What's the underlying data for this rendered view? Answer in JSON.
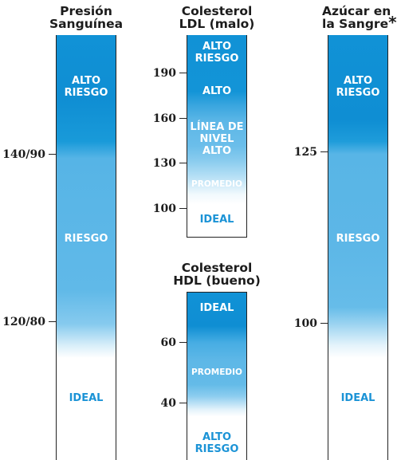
{
  "panels": {
    "blood_pressure": {
      "title": [
        "Presión",
        "Sanguínea"
      ],
      "bands": {
        "high_risk": [
          "ALTO",
          "RIESGO"
        ],
        "risk": "RIESGO",
        "ideal": "IDEAL"
      },
      "ticks": [
        "140/90",
        "120/80"
      ]
    },
    "ldl": {
      "title": [
        "Colesterol",
        "LDL (malo)"
      ],
      "bands": {
        "high_risk": [
          "ALTO",
          "RIESGO"
        ],
        "high": "ALTO",
        "borderline": [
          "LÍNEA DE",
          "NIVEL",
          "ALTO"
        ],
        "average": "PROMEDIO",
        "ideal": "IDEAL"
      },
      "ticks": [
        "190",
        "160",
        "130",
        "100"
      ]
    },
    "hdl": {
      "title": [
        "Colesterol",
        "HDL (bueno)"
      ],
      "bands": {
        "ideal": "IDEAL",
        "average": "PROMEDIO",
        "high_risk": [
          "ALTO",
          "RIESGO"
        ]
      },
      "ticks": [
        "60",
        "40"
      ]
    },
    "sugar": {
      "title": [
        "Azúcar en",
        "la Sangre"
      ],
      "title_mark": "*",
      "bands": {
        "high_risk": [
          "ALTO",
          "RIESGO"
        ],
        "risk": "RIESGO",
        "ideal": "IDEAL"
      },
      "ticks": [
        "125",
        "100"
      ]
    }
  },
  "colors": {
    "dark_blue": "#0f8ed3",
    "mid_blue": "#5db7e7",
    "ideal_text": "#1b93d6",
    "axis": "#222222"
  }
}
